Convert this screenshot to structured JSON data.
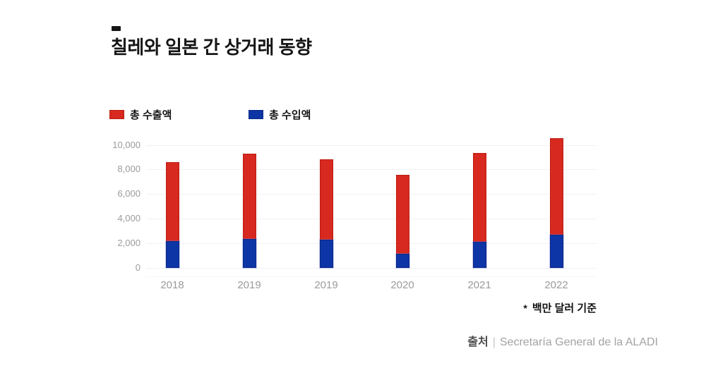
{
  "title": "칠레와 일본 간 상거래 동향",
  "legend": {
    "exports": {
      "label": "총 수출액",
      "color": "#d7291f",
      "border": "#bd1c12"
    },
    "imports": {
      "label": "총 수입액",
      "color": "#0d35a6",
      "border": "#0a2a85"
    }
  },
  "footnote": {
    "marker": "*",
    "text": "백만 달러 기준"
  },
  "source": {
    "label": "출처",
    "separator": "|",
    "text": "Secretaría General de la ALADI"
  },
  "chart_data": {
    "type": "bar",
    "title": "칠레와 일본 간 상거래 동향",
    "xlabel": "",
    "ylabel": "",
    "unit_note": "백만 달러 기준",
    "categories": [
      "2018",
      "2019",
      "2019",
      "2020",
      "2021",
      "2022"
    ],
    "series": [
      {
        "name": "총 수출액",
        "color": "#d7291f",
        "border": "#bd1c12",
        "values": [
          8600,
          9300,
          8850,
          7550,
          9350,
          10550
        ]
      },
      {
        "name": "총 수입액",
        "color": "#0d35a6",
        "border": "#0a2a85",
        "values": [
          2150,
          2350,
          2300,
          1150,
          2100,
          2700
        ]
      }
    ],
    "overlay": "imports drawn over base of exports bar",
    "ylim": [
      0,
      10000
    ],
    "yticks": [
      0,
      2000,
      4000,
      6000,
      8000,
      10000
    ],
    "ytick_labels": [
      "0",
      "2,000",
      "4,000",
      "6,000",
      "8,000",
      "10,000"
    ],
    "grid": true,
    "legend_position": "top-left"
  }
}
